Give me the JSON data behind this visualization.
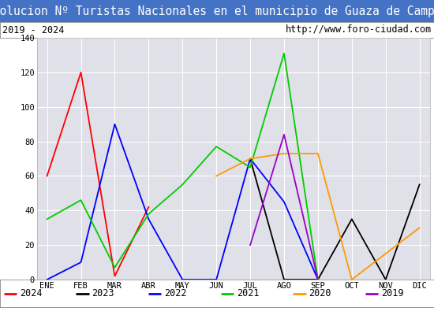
{
  "title": "Evolucion Nº Turistas Nacionales en el municipio de Guaza de Campos",
  "subtitle_left": "2019 - 2024",
  "subtitle_right": "http://www.foro-ciudad.com",
  "months": [
    "ENE",
    "FEB",
    "MAR",
    "ABR",
    "MAY",
    "JUN",
    "JUL",
    "AGO",
    "SEP",
    "OCT",
    "NOV",
    "DIC"
  ],
  "ylim": [
    0,
    140
  ],
  "yticks": [
    0,
    20,
    40,
    60,
    80,
    100,
    120,
    140
  ],
  "series": {
    "2024": {
      "color": "#ff0000",
      "values": [
        60,
        120,
        2,
        42,
        null,
        null,
        null,
        null,
        null,
        null,
        null,
        null
      ]
    },
    "2023": {
      "color": "#000000",
      "values": [
        null,
        null,
        null,
        null,
        null,
        null,
        70,
        0,
        0,
        35,
        0,
        55
      ]
    },
    "2022": {
      "color": "#0000ff",
      "values": [
        0,
        10,
        90,
        35,
        0,
        0,
        70,
        45,
        0,
        null,
        null,
        null
      ]
    },
    "2021": {
      "color": "#00cc00",
      "values": [
        35,
        46,
        7,
        38,
        55,
        77,
        65,
        131,
        0,
        null,
        null,
        null
      ]
    },
    "2020": {
      "color": "#ff9900",
      "values": [
        null,
        null,
        null,
        null,
        null,
        60,
        70,
        73,
        73,
        0,
        null,
        30
      ]
    },
    "2019": {
      "color": "#9900cc",
      "values": [
        null,
        null,
        null,
        null,
        null,
        null,
        20,
        84,
        0,
        null,
        null,
        null
      ]
    }
  },
  "title_bg": "#4472c4",
  "title_color": "#ffffff",
  "plot_bg": "#e0e0e8",
  "grid_color": "#ffffff",
  "title_fontsize": 10.5,
  "subtitle_fontsize": 8.5,
  "axis_label_fontsize": 7.5,
  "legend_fontsize": 8.5
}
